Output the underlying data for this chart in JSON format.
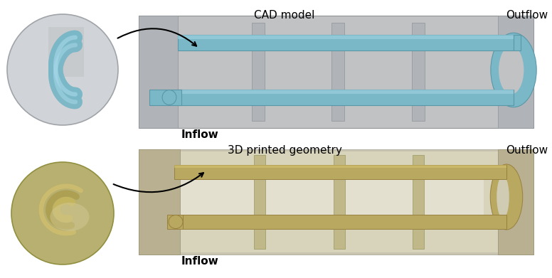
{
  "fig_width": 7.76,
  "fig_height": 3.91,
  "dpi": 100,
  "bg_color": "#ffffff",
  "top_title": "CAD model",
  "top_outflow": "Outflow",
  "top_inflow": "Inflow",
  "bottom_title": "3D printed geometry",
  "bottom_outflow": "Outflow",
  "bottom_inflow": "Inflow",
  "cad_bg_color": "#c0c2c4",
  "cad_tube_color": "#7ab8c8",
  "cad_tube_edge": "#5a98a8",
  "cad_tube_highlight": "#a8d8e8",
  "cad_support_color": "#b0b4b8",
  "cad_support_edge": "#909498",
  "printed_bg_color": "#c8c0a0",
  "printed_inner_color": "#e0dcc8",
  "printed_tube_color": "#b8a860",
  "printed_tube_edge": "#988040",
  "printed_wall_color": "#c0b070",
  "circle_top_bg": "#d0d4d8",
  "circle_top_tube": "#80b8c8",
  "circle_bot_bg": "#c8b870",
  "font_size": 11,
  "title_font_size": 11
}
